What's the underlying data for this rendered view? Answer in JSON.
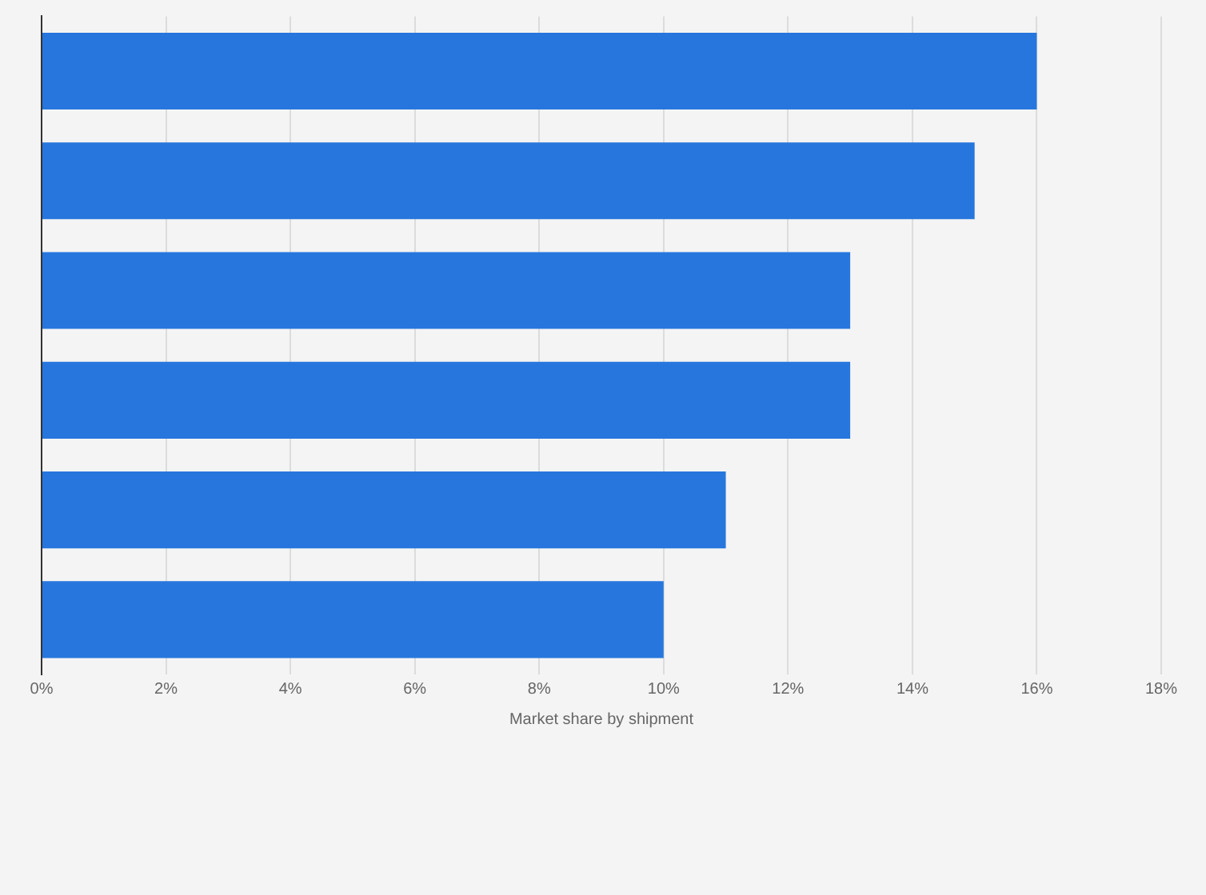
{
  "chart_data": {
    "type": "bar",
    "orientation": "horizontal",
    "xlabel": "Market share by shipment",
    "categories": [
      null,
      null,
      null,
      null,
      null,
      null
    ],
    "values": [
      16,
      15,
      13,
      13,
      11,
      10
    ],
    "color": "#2776dd",
    "xlim": [
      0,
      18
    ],
    "xticks": [
      {
        "value": 0,
        "label": "0%"
      },
      {
        "value": 2,
        "label": "2%"
      },
      {
        "value": 4,
        "label": "4%"
      },
      {
        "value": 6,
        "label": "6%"
      },
      {
        "value": 8,
        "label": "8%"
      },
      {
        "value": 10,
        "label": "10%"
      },
      {
        "value": 12,
        "label": "12%"
      },
      {
        "value": 14,
        "label": "14%"
      },
      {
        "value": 16,
        "label": "16%"
      },
      {
        "value": 18,
        "label": "18%"
      }
    ],
    "grid": "x",
    "legend": false
  }
}
